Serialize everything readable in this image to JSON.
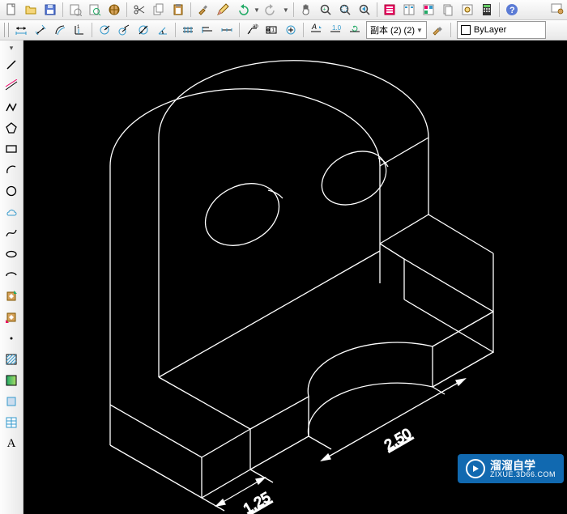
{
  "toolbar_top": {
    "icons": [
      {
        "name": "new-file-icon",
        "svg": "doc"
      },
      {
        "name": "open-file-icon",
        "svg": "folder"
      },
      {
        "name": "save-icon",
        "svg": "diskette"
      },
      {
        "sep": true
      },
      {
        "name": "page-setup-icon",
        "svg": "pagesetup"
      },
      {
        "name": "print-preview-icon",
        "svg": "preview"
      },
      {
        "name": "publish-icon",
        "svg": "globe"
      },
      {
        "sep": true
      },
      {
        "name": "cut-icon",
        "svg": "scissors"
      },
      {
        "name": "copy-icon",
        "svg": "copy"
      },
      {
        "name": "paste-icon",
        "svg": "paste"
      },
      {
        "sep": true
      },
      {
        "name": "match-properties-icon",
        "svg": "brush"
      },
      {
        "name": "block-editor-icon",
        "svg": "pencil"
      },
      {
        "name": "undo-icon",
        "svg": "undo",
        "dd": true
      },
      {
        "name": "redo-icon",
        "svg": "redo",
        "dd": true
      },
      {
        "sep": true
      },
      {
        "name": "pan-icon",
        "svg": "hand"
      },
      {
        "name": "zoom-realtime-icon",
        "svg": "zoomrt"
      },
      {
        "name": "zoom-window-icon",
        "svg": "zoomwin"
      },
      {
        "name": "zoom-previous-icon",
        "svg": "zoomprev"
      },
      {
        "sep": true
      },
      {
        "name": "properties-icon",
        "svg": "props"
      },
      {
        "name": "design-center-icon",
        "svg": "dc"
      },
      {
        "name": "tool-palettes-icon",
        "svg": "palette"
      },
      {
        "name": "sheet-set-icon",
        "svg": "sheet"
      },
      {
        "name": "markup-icon",
        "svg": "markup"
      },
      {
        "name": "calculator-icon",
        "svg": "calc"
      },
      {
        "sep": true
      },
      {
        "name": "help-icon",
        "svg": "help"
      }
    ]
  },
  "toolbar_row2": {
    "left_icons": [
      {
        "name": "linear-dim-icon",
        "svg": "dimlin"
      },
      {
        "name": "aligned-dim-icon",
        "svg": "dimalign"
      },
      {
        "name": "arc-dim-icon",
        "svg": "dimarc"
      },
      {
        "name": "ordinate-dim-icon",
        "svg": "dimord"
      },
      {
        "sep": true
      },
      {
        "name": "radius-dim-icon",
        "svg": "dimrad"
      },
      {
        "name": "jogged-dim-icon",
        "svg": "dimjog"
      },
      {
        "name": "diameter-dim-icon",
        "svg": "dimdia"
      },
      {
        "name": "angular-dim-icon",
        "svg": "dimang"
      },
      {
        "sep": true
      },
      {
        "name": "quick-dim-icon",
        "svg": "qdim"
      },
      {
        "name": "baseline-dim-icon",
        "svg": "dimbase"
      },
      {
        "name": "continue-dim-icon",
        "svg": "dimcont"
      },
      {
        "sep": true
      },
      {
        "name": "quick-leader-icon",
        "svg": "qleader"
      },
      {
        "name": "tolerance-icon",
        "svg": "tol"
      },
      {
        "name": "center-mark-icon",
        "svg": "center"
      },
      {
        "sep": true
      },
      {
        "name": "dim-edit-icon",
        "svg": "dimedit"
      },
      {
        "name": "dim-text-edit-icon",
        "svg": "dimtedit"
      },
      {
        "name": "dim-update-icon",
        "svg": "dimupdate"
      }
    ],
    "style_label": "副本 (2) (2)",
    "style_brush_icon": "dimbrush",
    "layer_label": "ByLayer"
  },
  "left_toolbar": {
    "icons": [
      {
        "name": "line-icon",
        "svg": "line"
      },
      {
        "name": "construction-line-icon",
        "svg": "xline"
      },
      {
        "name": "polyline-icon",
        "svg": "pline"
      },
      {
        "name": "polygon-icon",
        "svg": "polygon"
      },
      {
        "name": "rectangle-icon",
        "svg": "rect"
      },
      {
        "name": "arc-icon",
        "svg": "arc"
      },
      {
        "name": "circle-icon",
        "svg": "circle"
      },
      {
        "name": "revision-cloud-icon",
        "svg": "cloud"
      },
      {
        "name": "spline-icon",
        "svg": "spline"
      },
      {
        "name": "ellipse-icon",
        "svg": "ellipse"
      },
      {
        "name": "ellipse-arc-icon",
        "svg": "ellarc"
      },
      {
        "name": "insert-block-icon",
        "svg": "insert"
      },
      {
        "name": "make-block-icon",
        "svg": "block"
      },
      {
        "name": "point-icon",
        "svg": "point"
      },
      {
        "name": "hatch-icon",
        "svg": "hatch"
      },
      {
        "name": "gradient-icon",
        "svg": "gradient"
      },
      {
        "name": "region-icon",
        "svg": "region"
      },
      {
        "name": "table-icon",
        "svg": "table"
      },
      {
        "name": "text-icon",
        "svg": "text",
        "label": "A"
      }
    ]
  },
  "canvas": {
    "bg": "#000000",
    "line_color": "#ffffff",
    "line_width": 1.2,
    "dim_color": "#ffffff",
    "dims": [
      {
        "text": "1.25",
        "pos": "left",
        "name": "dim-1-25"
      },
      {
        "text": "2.50",
        "pos": "right",
        "name": "dim-2-50"
      }
    ]
  },
  "watermark": {
    "title": "溜溜自学",
    "subtitle": "ZIXUE.3D66.COM"
  }
}
